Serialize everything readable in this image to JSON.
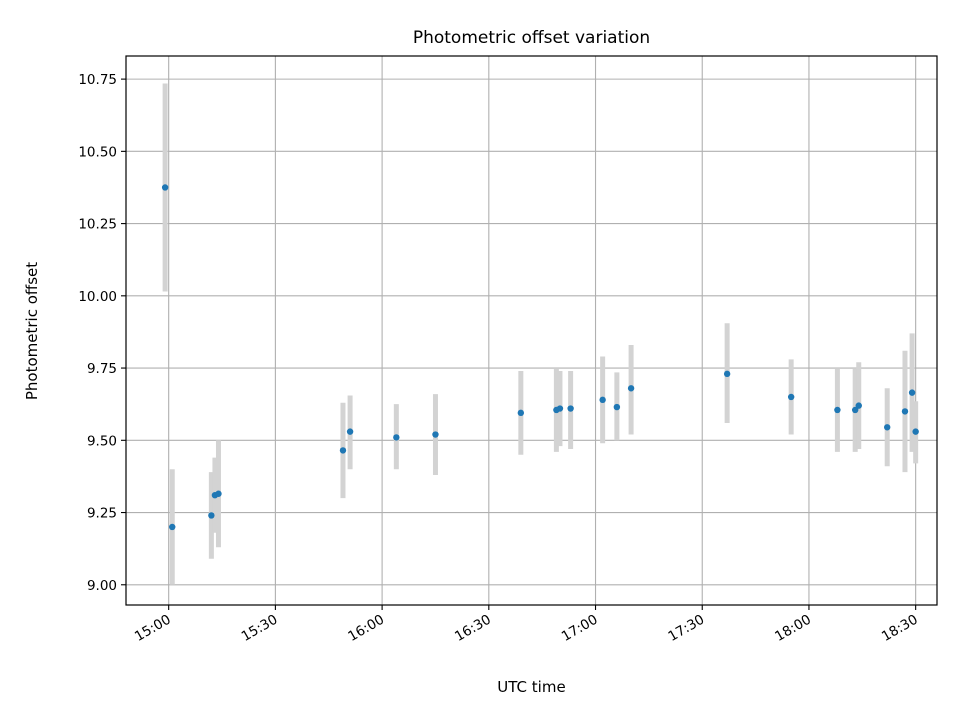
{
  "chart_data": {
    "type": "scatter",
    "title": "Photometric offset variation",
    "xlabel": "UTC time",
    "ylabel": "Photometric offset",
    "xlim": [
      "14:48",
      "18:36"
    ],
    "ylim": [
      8.93,
      10.83
    ],
    "x_ticks": [
      "15:00",
      "15:30",
      "16:00",
      "16:30",
      "17:00",
      "17:30",
      "18:00",
      "18:30"
    ],
    "y_ticks": [
      "9.00",
      "9.25",
      "9.50",
      "9.75",
      "10.00",
      "10.25",
      "10.50",
      "10.75"
    ],
    "grid": true,
    "point_color": "#1f77b4",
    "errorbar_color": "#d3d3d3",
    "points": [
      {
        "x": "14:59",
        "y": 10.375,
        "low": 10.015,
        "high": 10.735
      },
      {
        "x": "15:01",
        "y": 9.2,
        "low": 9.0,
        "high": 9.4
      },
      {
        "x": "15:12",
        "y": 9.24,
        "low": 9.09,
        "high": 9.39
      },
      {
        "x": "15:13",
        "y": 9.31,
        "low": 9.18,
        "high": 9.44
      },
      {
        "x": "15:14",
        "y": 9.315,
        "low": 9.13,
        "high": 9.5
      },
      {
        "x": "15:49",
        "y": 9.465,
        "low": 9.3,
        "high": 9.63
      },
      {
        "x": "15:51",
        "y": 9.53,
        "low": 9.4,
        "high": 9.655
      },
      {
        "x": "16:04",
        "y": 9.51,
        "low": 9.4,
        "high": 9.625
      },
      {
        "x": "16:15",
        "y": 9.52,
        "low": 9.38,
        "high": 9.66
      },
      {
        "x": "16:39",
        "y": 9.595,
        "low": 9.45,
        "high": 9.74
      },
      {
        "x": "16:49",
        "y": 9.605,
        "low": 9.46,
        "high": 9.75
      },
      {
        "x": "16:50",
        "y": 9.61,
        "low": 9.48,
        "high": 9.74
      },
      {
        "x": "16:53",
        "y": 9.61,
        "low": 9.47,
        "high": 9.74
      },
      {
        "x": "17:02",
        "y": 9.64,
        "low": 9.49,
        "high": 9.79
      },
      {
        "x": "17:06",
        "y": 9.615,
        "low": 9.5,
        "high": 9.735
      },
      {
        "x": "17:10",
        "y": 9.68,
        "low": 9.52,
        "high": 9.83
      },
      {
        "x": "17:37",
        "y": 9.73,
        "low": 9.56,
        "high": 9.905
      },
      {
        "x": "17:55",
        "y": 9.65,
        "low": 9.52,
        "high": 9.78
      },
      {
        "x": "18:08",
        "y": 9.605,
        "low": 9.46,
        "high": 9.75
      },
      {
        "x": "18:13",
        "y": 9.605,
        "low": 9.46,
        "high": 9.75
      },
      {
        "x": "18:14",
        "y": 9.62,
        "low": 9.47,
        "high": 9.77
      },
      {
        "x": "18:22",
        "y": 9.545,
        "low": 9.41,
        "high": 9.68
      },
      {
        "x": "18:27",
        "y": 9.6,
        "low": 9.39,
        "high": 9.81
      },
      {
        "x": "18:29",
        "y": 9.665,
        "low": 9.46,
        "high": 9.87
      },
      {
        "x": "18:30",
        "y": 9.53,
        "low": 9.42,
        "high": 9.635
      }
    ]
  }
}
